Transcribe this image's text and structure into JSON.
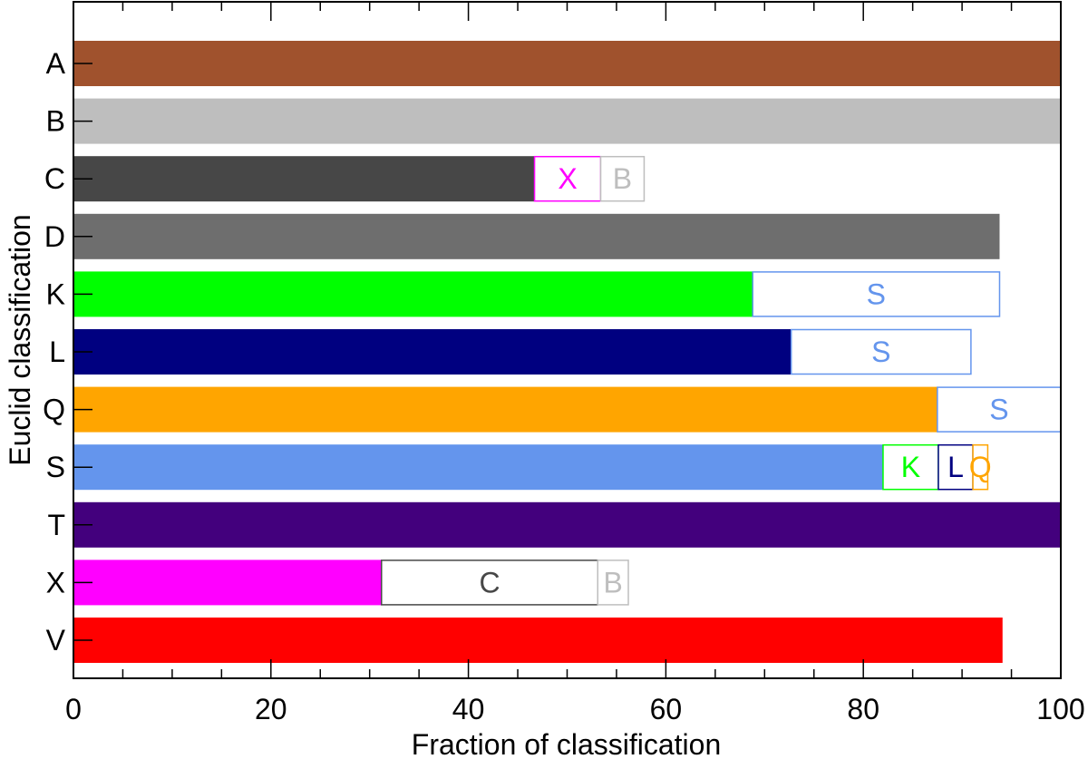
{
  "chart_data": {
    "type": "bar",
    "orientation": "horizontal",
    "stacked": true,
    "title": "",
    "xlabel": "Fraction of classification",
    "ylabel": "Euclid classification",
    "xlim": [
      0,
      100
    ],
    "x_ticks": [
      0,
      20,
      40,
      60,
      80,
      100
    ],
    "x_tick_labels": [
      "0",
      "20",
      "40",
      "60",
      "80",
      "100"
    ],
    "x_minor_tick_step": 5,
    "grid": false,
    "legend": "none",
    "categories": [
      "A",
      "B",
      "C",
      "D",
      "K",
      "L",
      "Q",
      "S",
      "T",
      "X",
      "V"
    ],
    "class_colors": {
      "A": "#a0522d",
      "B": "#bebebe",
      "C": "#474747",
      "D": "#6e6e6e",
      "K": "#00ff00",
      "L": "#000080",
      "Q": "#ffa500",
      "S": "#6495ed",
      "T": "#43007d",
      "X": "#ff00ff",
      "V": "#ff0000"
    },
    "bars": [
      {
        "category": "A",
        "segments": [
          {
            "class": "A",
            "value": 100,
            "label": ""
          }
        ]
      },
      {
        "category": "B",
        "segments": [
          {
            "class": "B",
            "value": 100,
            "label": ""
          }
        ]
      },
      {
        "category": "C",
        "segments": [
          {
            "class": "C",
            "value": 46.7,
            "label": ""
          },
          {
            "class": "X",
            "value": 6.7,
            "label": "X"
          },
          {
            "class": "B",
            "value": 4.4,
            "label": "B"
          }
        ]
      },
      {
        "category": "D",
        "segments": [
          {
            "class": "D",
            "value": 93.8,
            "label": ""
          }
        ]
      },
      {
        "category": "K",
        "segments": [
          {
            "class": "K",
            "value": 68.8,
            "label": ""
          },
          {
            "class": "S",
            "value": 25.0,
            "label": "S"
          }
        ]
      },
      {
        "category": "L",
        "segments": [
          {
            "class": "L",
            "value": 72.7,
            "label": ""
          },
          {
            "class": "S",
            "value": 18.2,
            "label": "S"
          }
        ]
      },
      {
        "category": "Q",
        "segments": [
          {
            "class": "Q",
            "value": 87.5,
            "label": ""
          },
          {
            "class": "S",
            "value": 12.5,
            "label": "S"
          }
        ]
      },
      {
        "category": "S",
        "segments": [
          {
            "class": "S",
            "value": 82.0,
            "label": ""
          },
          {
            "class": "K",
            "value": 5.6,
            "label": "K"
          },
          {
            "class": "L",
            "value": 3.5,
            "label": "L"
          },
          {
            "class": "Q",
            "value": 1.5,
            "label": "Q"
          }
        ]
      },
      {
        "category": "T",
        "segments": [
          {
            "class": "T",
            "value": 100,
            "label": ""
          }
        ]
      },
      {
        "category": "X",
        "segments": [
          {
            "class": "X",
            "value": 31.2,
            "label": ""
          },
          {
            "class": "C",
            "value": 21.9,
            "label": "C"
          },
          {
            "class": "B",
            "value": 3.1,
            "label": "B"
          }
        ]
      },
      {
        "category": "V",
        "segments": [
          {
            "class": "V",
            "value": 94.1,
            "label": ""
          }
        ]
      }
    ]
  }
}
